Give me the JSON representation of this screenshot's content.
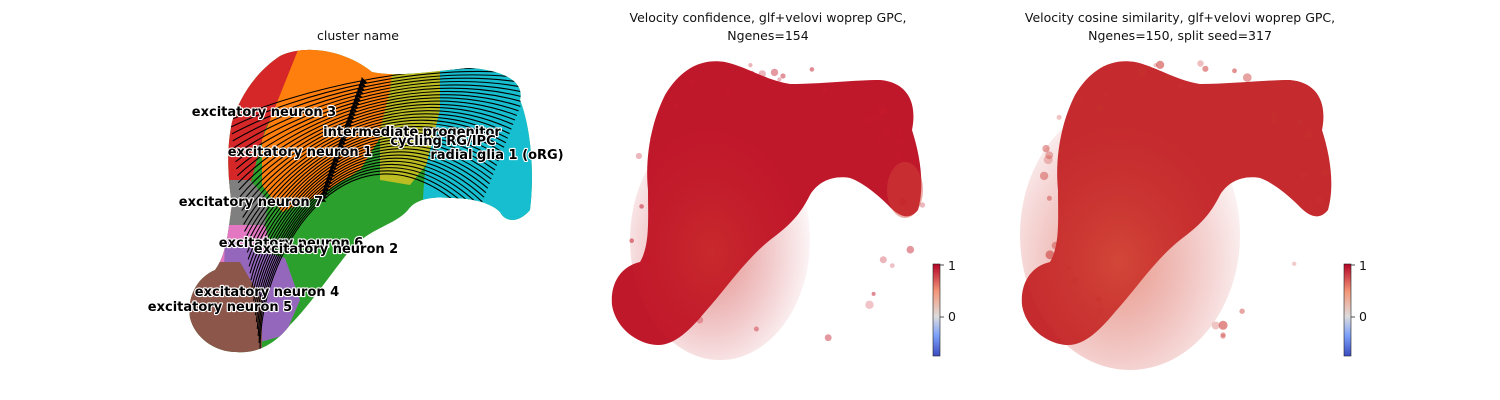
{
  "chart_data": [
    {
      "type": "scatter",
      "title": "cluster name",
      "overlay": "velocity streamlines",
      "axes_visible": false,
      "clusters": [
        {
          "name": "excitatory neuron 3",
          "color": "#d62728"
        },
        {
          "name": "intermediate progenitor",
          "color": "#ff7f0e"
        },
        {
          "name": "excitatory neuron 1",
          "color": "#ff7f0e"
        },
        {
          "name": "cycling RG/IPC",
          "color": "#bcbd22"
        },
        {
          "name": "radial glia 1 (oRG)",
          "color": "#17becf"
        },
        {
          "name": "excitatory neuron 7",
          "color": "#7f7f7f"
        },
        {
          "name": "excitatory neuron 6",
          "color": "#e377c2"
        },
        {
          "name": "excitatory neuron 2",
          "color": "#2ca02c"
        },
        {
          "name": "excitatory neuron 4",
          "color": "#9467bd"
        },
        {
          "name": "excitatory neuron 5",
          "color": "#8c564b"
        }
      ]
    },
    {
      "type": "scatter",
      "title_line1": "Velocity confidence, glf+velovi woprep GPC,",
      "title_line2": "Ngenes=154",
      "axes_visible": false,
      "colormap": "coolwarm",
      "dominant_color": "#b40426",
      "colorbar": {
        "ticks": [
          "1",
          "0"
        ],
        "tick_values": [
          1,
          0
        ],
        "range": [
          -0.75,
          1
        ]
      }
    },
    {
      "type": "scatter",
      "title_line1": "Velocity cosine similarity, glf+velovi woprep GPC,",
      "title_line2": "Ngenes=150, split seed=317",
      "axes_visible": false,
      "colormap": "coolwarm",
      "dominant_color": "#c0282c",
      "colorbar": {
        "ticks": [
          "1",
          "0"
        ],
        "tick_values": [
          1,
          0
        ],
        "range": [
          -0.75,
          1
        ]
      }
    }
  ]
}
